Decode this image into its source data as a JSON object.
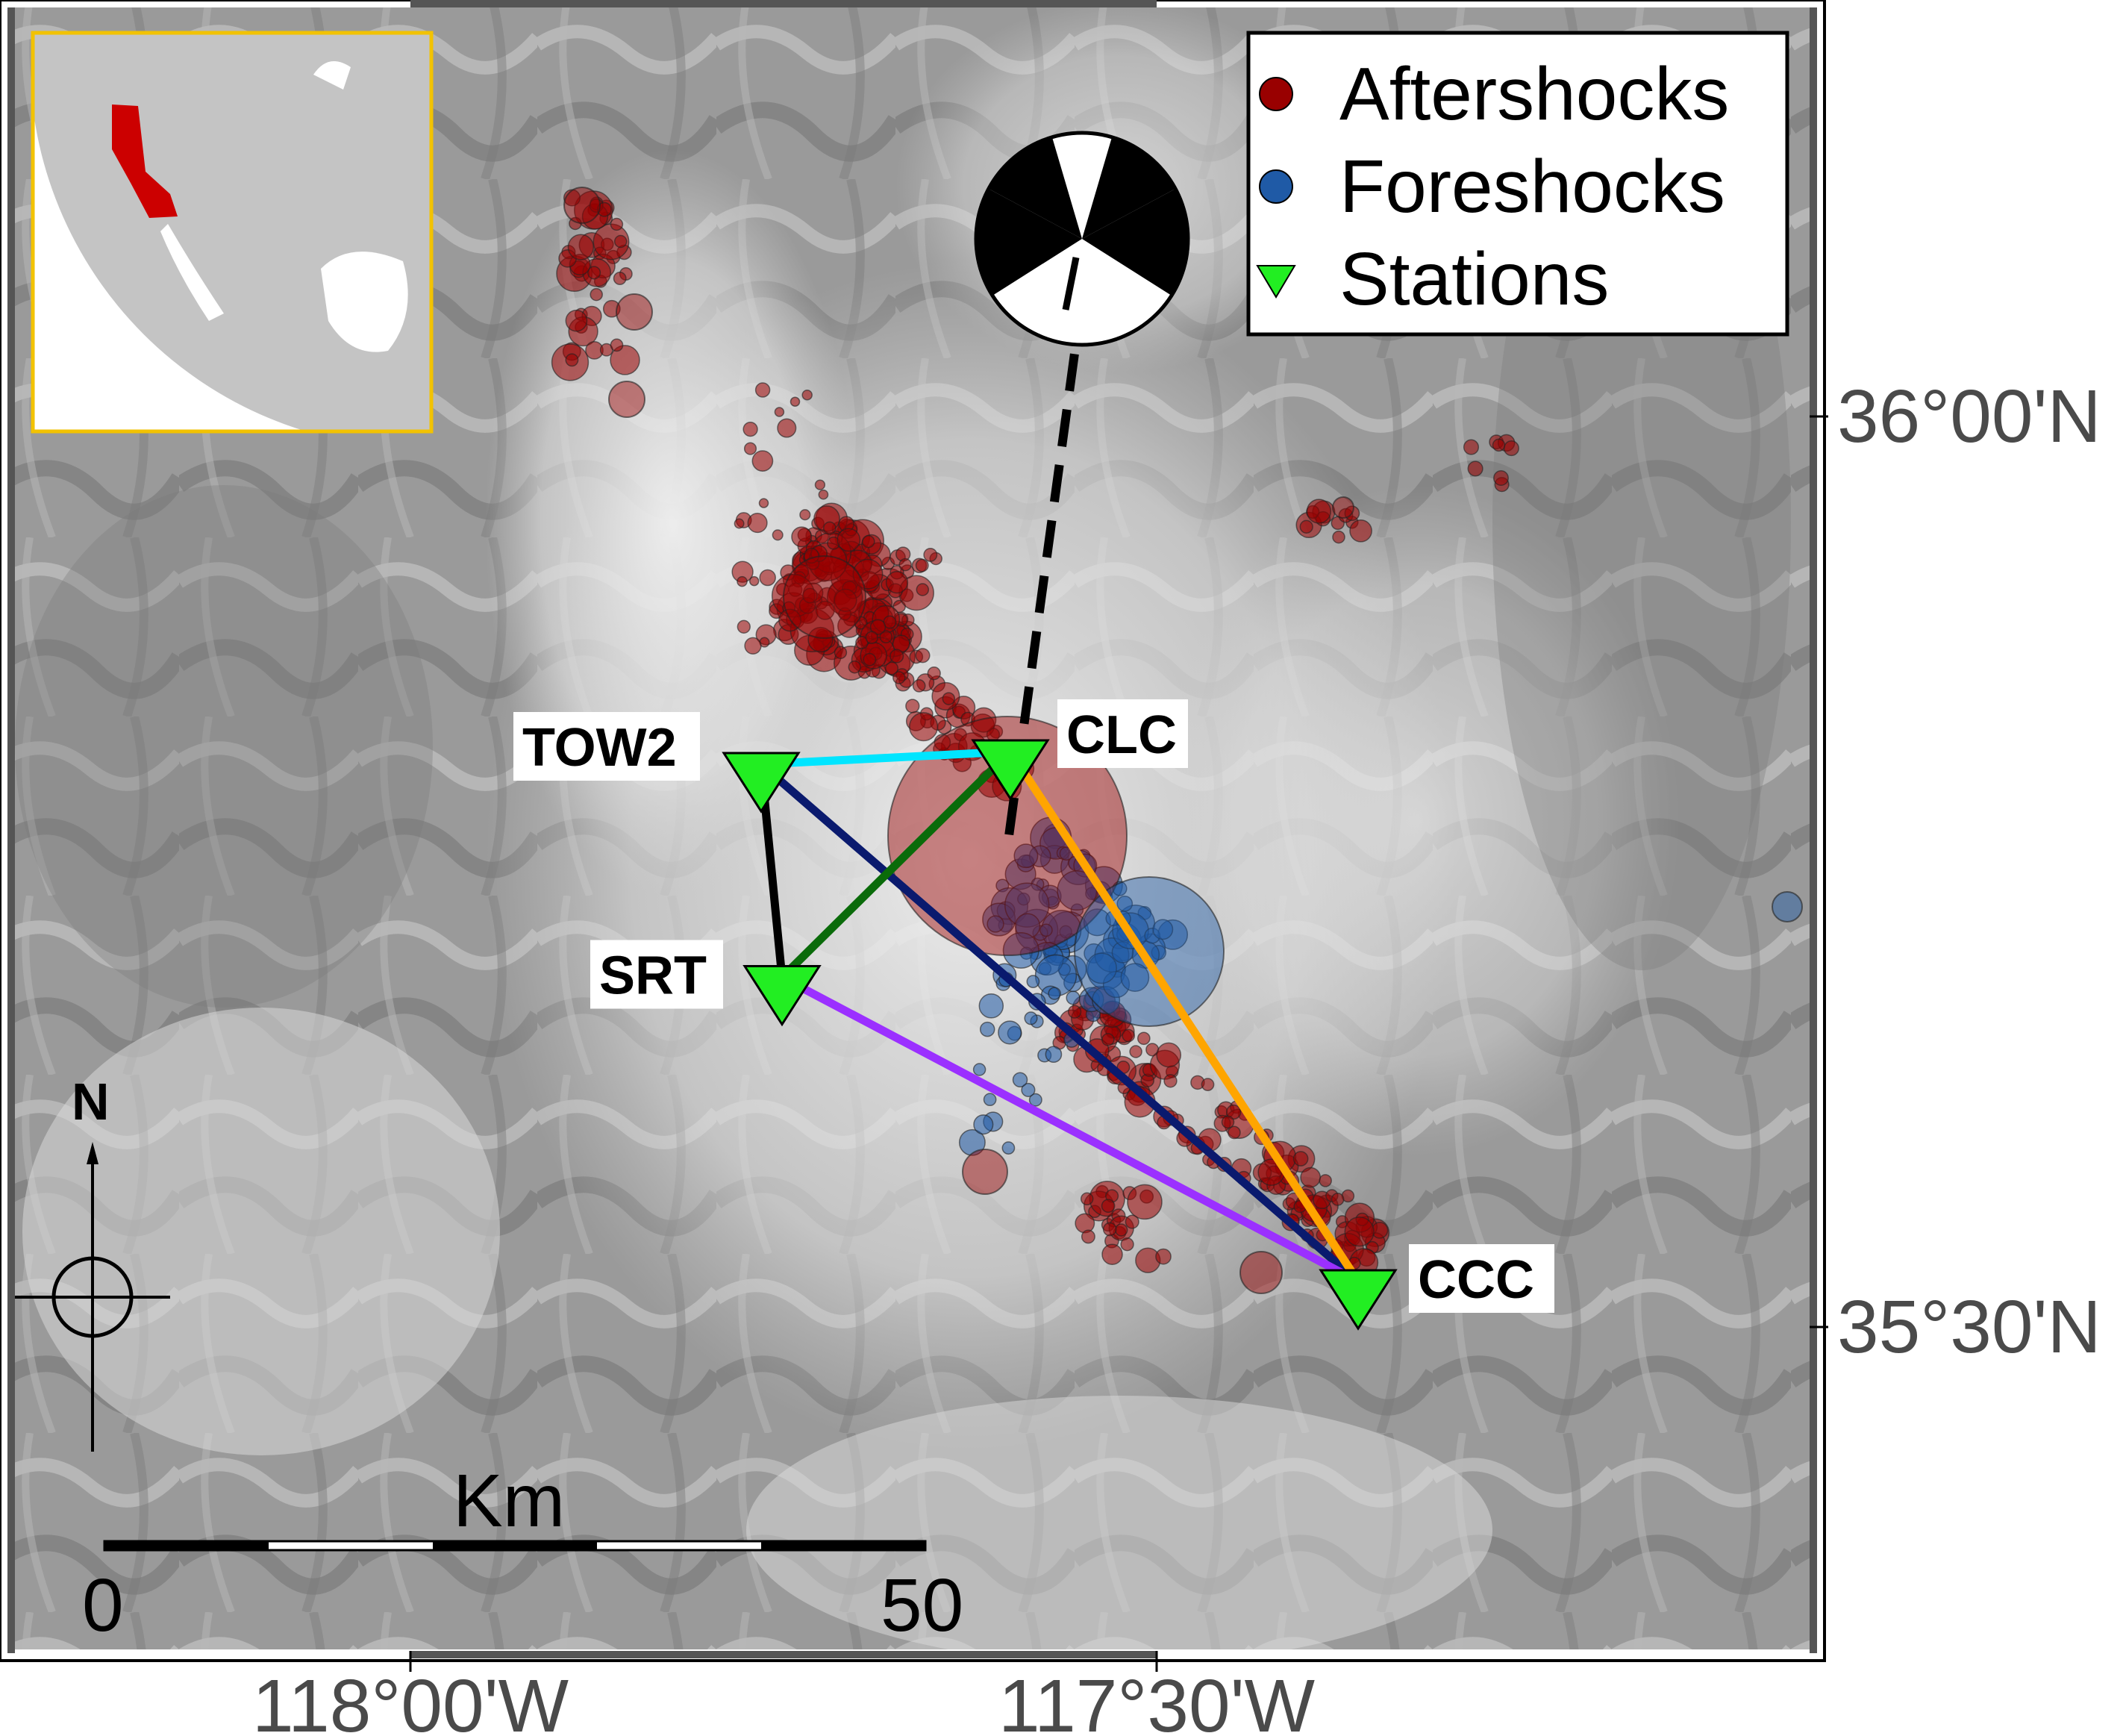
{
  "map": {
    "axes": {
      "x_ticks": [
        {
          "label": "118°00'W",
          "lon": -118.0
        },
        {
          "label": "117°30'W",
          "lon": -117.5
        }
      ],
      "y_ticks": [
        {
          "label": "36°00'N",
          "lat": 36.0
        },
        {
          "label": "35°30'N",
          "lat": 35.5
        }
      ]
    },
    "legend": {
      "position": "top-right",
      "items": [
        {
          "label": "Aftershocks",
          "symbol": "circle",
          "color": "#990000"
        },
        {
          "label": "Foreshocks",
          "symbol": "circle",
          "color": "#1f5aa6"
        },
        {
          "label": "Stations",
          "symbol": "inverted-triangle",
          "color": "#22ee22"
        }
      ]
    },
    "stations": [
      {
        "name": "TOW2",
        "lon": -117.765,
        "lat": 35.809
      },
      {
        "name": "CLC",
        "lon": -117.598,
        "lat": 35.816
      },
      {
        "name": "SRT",
        "lon": -117.751,
        "lat": 35.692
      },
      {
        "name": "CCC",
        "lon": -117.365,
        "lat": 35.525
      }
    ],
    "paths": [
      {
        "from": "TOW2",
        "to": "CLC",
        "color": "#00e5ff"
      },
      {
        "from": "TOW2",
        "to": "SRT",
        "color": "#000000"
      },
      {
        "from": "TOW2",
        "to": "CCC",
        "color": "#0a1a6e"
      },
      {
        "from": "CLC",
        "to": "SRT",
        "color": "#0a6b0a"
      },
      {
        "from": "CLC",
        "to": "CCC",
        "color": "#ffa500"
      },
      {
        "from": "SRT",
        "to": "CCC",
        "color": "#9b30ff"
      }
    ],
    "scale_bar": {
      "title": "Km",
      "start_label": "0",
      "end_label": "50"
    },
    "north_arrow": {
      "label": "N"
    },
    "inset": {
      "highlight_region": "California",
      "highlight_color": "#cc0000",
      "frame_color": "#f2c200"
    },
    "beachball": {
      "type": "focal-mechanism",
      "colors": [
        "#000000",
        "#ffffff"
      ]
    }
  }
}
